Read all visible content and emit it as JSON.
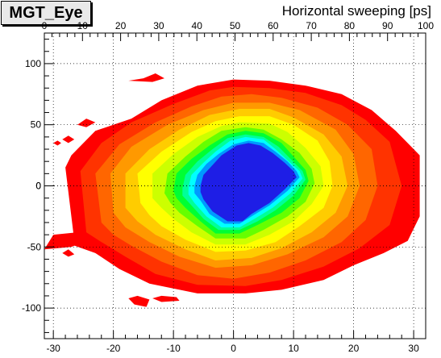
{
  "window": {
    "title": "MGT_Eye",
    "top_axis_label": "Horizontal sweeping [ps]"
  },
  "chart_data": {
    "type": "heatmap",
    "title": "MGT_Eye",
    "x2label": "Horizontal sweeping [ps]",
    "xlabel": "",
    "ylabel": "",
    "xlim": [
      -31.5,
      32
    ],
    "ylim": [
      -125,
      125
    ],
    "x2lim": [
      0,
      100
    ],
    "xticks": [
      -30,
      -20,
      -10,
      0,
      10,
      20,
      30
    ],
    "yticks": [
      -100,
      -50,
      0,
      50,
      100
    ],
    "x2ticks": [
      0,
      10,
      20,
      30,
      40,
      50,
      60,
      70,
      80,
      90,
      100
    ],
    "grid": true,
    "colors": [
      "#ff0000",
      "#ff3300",
      "#ff6600",
      "#ff9900",
      "#ffcc00",
      "#ffff00",
      "#ccff00",
      "#66ff00",
      "#00ff33",
      "#00ff99",
      "#00ffff",
      "#0099ff",
      "#1e1ee6"
    ],
    "contours": [
      {
        "level": 1,
        "points": [
          [
            -26.5,
            -45
          ],
          [
            -28,
            15
          ],
          [
            -27,
            25
          ],
          [
            -23,
            45
          ],
          [
            -17,
            55
          ],
          [
            -12,
            70
          ],
          [
            -6,
            82
          ],
          [
            0,
            87
          ],
          [
            6,
            86
          ],
          [
            12,
            82
          ],
          [
            18,
            75
          ],
          [
            23,
            62
          ],
          [
            27,
            45
          ],
          [
            31,
            25
          ],
          [
            31,
            -25
          ],
          [
            29,
            -45
          ],
          [
            25,
            -55
          ],
          [
            20,
            -65
          ],
          [
            15,
            -77
          ],
          [
            8,
            -85
          ],
          [
            2,
            -88
          ],
          [
            -6,
            -88
          ],
          [
            -14,
            -80
          ],
          [
            -19,
            -68
          ],
          [
            -23,
            -55
          ],
          [
            -27,
            -48
          ]
        ]
      },
      {
        "level": 2,
        "points": [
          [
            -24.5,
            -38
          ],
          [
            -25.5,
            12
          ],
          [
            -22,
            35
          ],
          [
            -17,
            52
          ],
          [
            -10,
            67
          ],
          [
            -4,
            78
          ],
          [
            0,
            81
          ],
          [
            6,
            80
          ],
          [
            12,
            76
          ],
          [
            18,
            66
          ],
          [
            22,
            54
          ],
          [
            26,
            36
          ],
          [
            28,
            0
          ],
          [
            26,
            -32
          ],
          [
            21,
            -51
          ],
          [
            15,
            -66
          ],
          [
            8,
            -77
          ],
          [
            2,
            -82
          ],
          [
            -6,
            -81
          ],
          [
            -13,
            -72
          ],
          [
            -18,
            -58
          ],
          [
            -22,
            -46
          ]
        ]
      },
      {
        "level": 3,
        "points": [
          [
            -22,
            -30
          ],
          [
            -23,
            10
          ],
          [
            -19,
            34
          ],
          [
            -13,
            52
          ],
          [
            -7,
            65
          ],
          [
            -2,
            73
          ],
          [
            3,
            75
          ],
          [
            8,
            72
          ],
          [
            14,
            64
          ],
          [
            19,
            50
          ],
          [
            23,
            30
          ],
          [
            24,
            0
          ],
          [
            22,
            -28
          ],
          [
            18,
            -46
          ],
          [
            12,
            -61
          ],
          [
            6,
            -71
          ],
          [
            0,
            -76
          ],
          [
            -6,
            -73
          ],
          [
            -12,
            -62
          ],
          [
            -17,
            -49
          ],
          [
            -20,
            -40
          ]
        ]
      },
      {
        "level": 4,
        "points": [
          [
            -20,
            -22
          ],
          [
            -20.5,
            10
          ],
          [
            -17,
            32
          ],
          [
            -11,
            50
          ],
          [
            -5,
            62
          ],
          [
            0,
            68
          ],
          [
            6,
            68
          ],
          [
            11,
            62
          ],
          [
            17,
            46
          ],
          [
            20,
            26
          ],
          [
            21,
            0
          ],
          [
            19,
            -25
          ],
          [
            15,
            -42
          ],
          [
            9,
            -56
          ],
          [
            3,
            -65
          ],
          [
            -3,
            -67
          ],
          [
            -9,
            -58
          ],
          [
            -14,
            -46
          ],
          [
            -18,
            -34
          ]
        ]
      },
      {
        "level": 5,
        "points": [
          [
            -18,
            -18
          ],
          [
            -18,
            10
          ],
          [
            -14,
            30
          ],
          [
            -9,
            46
          ],
          [
            -4,
            58
          ],
          [
            1,
            63
          ],
          [
            6,
            63
          ],
          [
            10,
            56
          ],
          [
            15,
            42
          ],
          [
            18,
            24
          ],
          [
            19,
            0
          ],
          [
            17,
            -22
          ],
          [
            13,
            -38
          ],
          [
            8,
            -51
          ],
          [
            3,
            -59
          ],
          [
            -3,
            -61
          ],
          [
            -8,
            -52
          ],
          [
            -13,
            -40
          ],
          [
            -16,
            -29
          ]
        ]
      },
      {
        "level": 6,
        "points": [
          [
            -15.5,
            -14
          ],
          [
            -16,
            10
          ],
          [
            -12,
            28
          ],
          [
            -7,
            44
          ],
          [
            -3,
            53
          ],
          [
            1,
            57
          ],
          [
            6,
            57
          ],
          [
            10,
            50
          ],
          [
            14,
            37
          ],
          [
            16,
            20
          ],
          [
            16.5,
            0
          ],
          [
            15,
            -18
          ],
          [
            11,
            -33
          ],
          [
            7,
            -46
          ],
          [
            2,
            -53
          ],
          [
            -3,
            -54
          ],
          [
            -8,
            -44
          ],
          [
            -12,
            -33
          ],
          [
            -14,
            -24
          ]
        ]
      },
      {
        "level": 7,
        "points": [
          [
            -13.5,
            -10
          ],
          [
            -13.5,
            10
          ],
          [
            -10,
            26
          ],
          [
            -6,
            40
          ],
          [
            -2,
            49
          ],
          [
            1,
            52
          ],
          [
            6,
            51
          ],
          [
            9,
            44
          ],
          [
            12,
            31
          ],
          [
            14.5,
            16
          ],
          [
            15,
            0
          ],
          [
            13,
            -15
          ],
          [
            10,
            -29
          ],
          [
            6,
            -40
          ],
          [
            2,
            -48
          ],
          [
            -3,
            -48
          ],
          [
            -7,
            -38
          ],
          [
            -10,
            -27
          ],
          [
            -12,
            -18
          ]
        ]
      },
      {
        "level": 8,
        "points": [
          [
            -11.5,
            -6
          ],
          [
            -11,
            10
          ],
          [
            -8,
            24
          ],
          [
            -5,
            36
          ],
          [
            -2,
            45
          ],
          [
            2,
            48
          ],
          [
            5,
            46
          ],
          [
            8,
            38
          ],
          [
            11,
            27
          ],
          [
            13,
            14
          ],
          [
            13.5,
            2
          ],
          [
            12,
            -13
          ],
          [
            9,
            -25
          ],
          [
            5,
            -36
          ],
          [
            2,
            -43
          ],
          [
            -3,
            -43
          ],
          [
            -6,
            -33
          ],
          [
            -9,
            -22
          ],
          [
            -10.5,
            -14
          ]
        ]
      },
      {
        "level": 9,
        "points": [
          [
            -10,
            -4
          ],
          [
            -9.5,
            10
          ],
          [
            -7,
            22
          ],
          [
            -4,
            33
          ],
          [
            -1,
            42
          ],
          [
            2,
            45
          ],
          [
            5,
            43
          ],
          [
            8,
            35
          ],
          [
            10,
            24
          ],
          [
            12,
            13
          ],
          [
            12.5,
            4
          ],
          [
            11,
            -10
          ],
          [
            8,
            -22
          ],
          [
            4,
            -32
          ],
          [
            1,
            -39
          ],
          [
            -3,
            -39
          ],
          [
            -5.5,
            -29
          ],
          [
            -8,
            -18
          ],
          [
            -9.5,
            -10
          ]
        ]
      },
      {
        "level": 10,
        "points": [
          [
            -8.5,
            -2
          ],
          [
            -8,
            9
          ],
          [
            -6,
            20
          ],
          [
            -3.5,
            30
          ],
          [
            -1,
            39
          ],
          [
            2,
            42
          ],
          [
            5,
            40
          ],
          [
            7.5,
            32
          ],
          [
            9.5,
            22
          ],
          [
            11.5,
            12
          ],
          [
            12,
            5
          ],
          [
            10,
            -8
          ],
          [
            7,
            -20
          ],
          [
            4,
            -29
          ],
          [
            1,
            -36
          ],
          [
            -2.5,
            -36
          ],
          [
            -5,
            -27
          ],
          [
            -7,
            -16
          ],
          [
            -8.5,
            -8
          ]
        ]
      },
      {
        "level": 11,
        "points": [
          [
            -7.5,
            -1
          ],
          [
            -7,
            9
          ],
          [
            -5,
            19
          ],
          [
            -3,
            28
          ],
          [
            -0.5,
            37
          ],
          [
            2,
            40
          ],
          [
            5,
            38
          ],
          [
            7,
            30
          ],
          [
            9,
            21
          ],
          [
            11,
            12
          ],
          [
            11.5,
            6
          ],
          [
            9.5,
            -6
          ],
          [
            6.5,
            -18
          ],
          [
            3.5,
            -27
          ],
          [
            1,
            -34
          ],
          [
            -2,
            -34
          ],
          [
            -4.5,
            -25
          ],
          [
            -6.5,
            -14
          ],
          [
            -7.5,
            -7
          ]
        ]
      },
      {
        "level": 12,
        "points": [
          [
            -6.5,
            0
          ],
          [
            -6,
            9
          ],
          [
            -4.5,
            18
          ],
          [
            -2.5,
            26
          ],
          [
            0,
            34
          ],
          [
            2.5,
            37
          ],
          [
            5,
            35
          ],
          [
            7,
            28
          ],
          [
            9,
            20
          ],
          [
            10.5,
            12
          ],
          [
            11,
            7
          ],
          [
            9,
            -4
          ],
          [
            6,
            -16
          ],
          [
            3,
            -25
          ],
          [
            1,
            -31
          ],
          [
            -1.5,
            -31
          ],
          [
            -4,
            -23
          ],
          [
            -5.5,
            -12
          ],
          [
            -6.5,
            -6
          ]
        ]
      },
      {
        "level": 13,
        "points": [
          [
            -5.5,
            0
          ],
          [
            -5,
            9
          ],
          [
            -3.5,
            17
          ],
          [
            -2,
            25
          ],
          [
            0.5,
            33
          ],
          [
            2.5,
            35
          ],
          [
            4.5,
            33
          ],
          [
            6.5,
            27
          ],
          [
            8.5,
            19
          ],
          [
            10,
            12
          ],
          [
            10.5,
            7
          ],
          [
            8.5,
            -3
          ],
          [
            6,
            -14
          ],
          [
            3,
            -23
          ],
          [
            1.5,
            -29
          ],
          [
            -1,
            -29
          ],
          [
            -3.5,
            -21
          ],
          [
            -5,
            -11
          ],
          [
            -5.5,
            -5
          ]
        ]
      }
    ],
    "islands": [
      {
        "level": 1,
        "points": [
          [
            -17.5,
            86
          ],
          [
            -15,
            88
          ],
          [
            -13,
            92
          ],
          [
            -11.5,
            88
          ],
          [
            -13.5,
            85
          ]
        ]
      },
      {
        "level": 1,
        "points": [
          [
            -26,
            50
          ],
          [
            -24.5,
            55
          ],
          [
            -23,
            52
          ],
          [
            -24.5,
            48
          ]
        ]
      },
      {
        "level": 1,
        "points": [
          [
            -22,
            43
          ],
          [
            -20.5,
            47
          ],
          [
            -19,
            44
          ],
          [
            -20.5,
            41
          ]
        ]
      },
      {
        "level": 1,
        "points": [
          [
            -28.5,
            38
          ],
          [
            -27.5,
            41
          ],
          [
            -26.5,
            38
          ],
          [
            -27.5,
            35
          ]
        ]
      },
      {
        "level": 1,
        "points": [
          [
            -30,
            35
          ],
          [
            -29.3,
            37
          ],
          [
            -28.7,
            35
          ],
          [
            -29.3,
            33
          ]
        ]
      },
      {
        "level": 1,
        "points": [
          [
            -31.5,
            -52
          ],
          [
            -30,
            -40
          ],
          [
            -26,
            -38
          ],
          [
            -24,
            -44
          ],
          [
            -27,
            -50
          ]
        ]
      },
      {
        "level": 1,
        "points": [
          [
            -28.5,
            -55
          ],
          [
            -27.5,
            -52
          ],
          [
            -26.5,
            -56
          ],
          [
            -27.5,
            -58
          ]
        ]
      },
      {
        "level": 1,
        "points": [
          [
            -17.5,
            -92
          ],
          [
            -16.5,
            -97
          ],
          [
            -14.5,
            -99
          ],
          [
            -14,
            -93
          ],
          [
            -16,
            -90
          ]
        ]
      },
      {
        "level": 1,
        "points": [
          [
            -13.5,
            -92
          ],
          [
            -12,
            -95
          ],
          [
            -9,
            -94
          ],
          [
            -9.5,
            -91
          ],
          [
            -12,
            -90
          ]
        ]
      }
    ]
  }
}
